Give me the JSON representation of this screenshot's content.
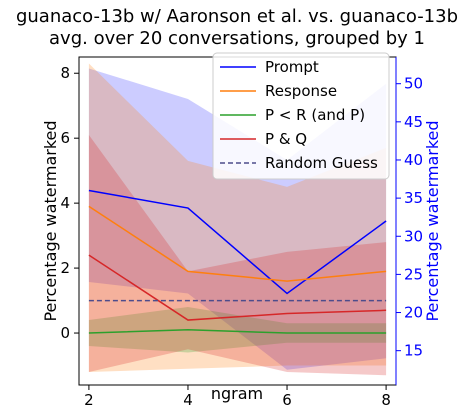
{
  "chart_data": {
    "type": "line",
    "title": "guanaco-13b w/ Aaronson et al. vs. guanaco-13b",
    "subtitle": "avg. over 20 conversations, grouped by 1",
    "xlabel": "ngram",
    "ylabel": "Percentage watermarked",
    "ylabel_right": "Percentage watermarked",
    "x": [
      2,
      4,
      6,
      8
    ],
    "x_ticks": [
      "2",
      "4",
      "6",
      "8"
    ],
    "xlim": [
      1.8,
      8.2
    ],
    "ylim": [
      -1.6,
      8.5
    ],
    "y_ticks": [
      "0",
      "2",
      "4",
      "6",
      "8"
    ],
    "y_tick_values": [
      0,
      2,
      4,
      6,
      8
    ],
    "ylim_right": [
      10.5,
      53.5
    ],
    "y_ticks_right": [
      "15",
      "20",
      "25",
      "30",
      "35",
      "40",
      "45",
      "50"
    ],
    "y_tick_values_right": [
      15,
      20,
      25,
      30,
      35,
      40,
      45,
      50
    ],
    "right_axis_color": "#0000ff",
    "legend_position": "top-right",
    "grid": false,
    "series": [
      {
        "name": "Prompt",
        "axis": "right",
        "color": "#0000ff",
        "style": "solid",
        "values": [
          36.0,
          33.7,
          22.5,
          32.0
        ],
        "band_low": [
          24.0,
          22.5,
          12.5,
          14.0
        ],
        "band_high": [
          52.0,
          48.0,
          40.0,
          50.0
        ]
      },
      {
        "name": "Response",
        "axis": "left",
        "color": "#ff7f0e",
        "style": "solid",
        "values": [
          3.9,
          1.9,
          1.6,
          1.9
        ],
        "band_low": [
          -1.2,
          -1.1,
          -1.0,
          -1.0
        ],
        "band_high": [
          8.3,
          5.3,
          4.5,
          5.7
        ]
      },
      {
        "name": "P < R (and P)",
        "axis": "left",
        "color": "#2ca02c",
        "style": "solid",
        "values": [
          0.0,
          0.1,
          0.0,
          0.0
        ],
        "band_low": [
          -0.4,
          -0.6,
          -0.3,
          -0.3
        ],
        "band_high": [
          0.4,
          0.8,
          0.3,
          0.3
        ]
      },
      {
        "name": "P & Q",
        "axis": "left",
        "color": "#d62728",
        "style": "solid",
        "values": [
          2.4,
          0.4,
          0.6,
          0.7
        ],
        "band_low": [
          -1.2,
          -0.5,
          -1.2,
          -1.3
        ],
        "band_high": [
          6.1,
          1.9,
          2.5,
          2.8
        ]
      },
      {
        "name": "Random Guess",
        "axis": "left",
        "color": "#4c4c8c",
        "style": "dashed",
        "values": [
          1.0,
          1.0,
          1.0,
          1.0
        ]
      }
    ]
  }
}
